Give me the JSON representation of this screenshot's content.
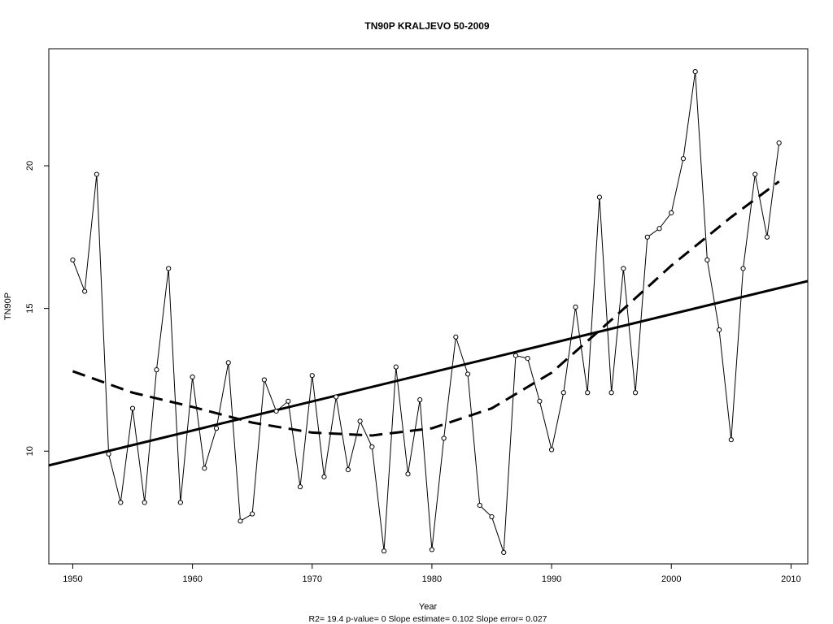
{
  "chart_data": {
    "type": "line",
    "title": "TN90P    KRALJEVO 50-2009",
    "xlabel": "Year",
    "ylabel": "TN90P",
    "stats_note": "R2= 19.4  p-value= 0  Slope estimate= 0.102  Slope error= 0.027",
    "xlim": [
      1948,
      2011.4
    ],
    "ylim": [
      6.05,
      24.1
    ],
    "x_ticks": [
      1950,
      1960,
      1970,
      1980,
      1990,
      2000,
      2010
    ],
    "y_ticks": [
      10,
      15,
      20
    ],
    "grid": false,
    "series": [
      {
        "style": "line-with-open-circles",
        "x": [
          1950,
          1951,
          1952,
          1953,
          1954,
          1955,
          1956,
          1957,
          1958,
          1959,
          1960,
          1961,
          1962,
          1963,
          1964,
          1965,
          1966,
          1967,
          1968,
          1969,
          1970,
          1971,
          1972,
          1973,
          1974,
          1975,
          1976,
          1977,
          1978,
          1979,
          1980,
          1981,
          1982,
          1983,
          1984,
          1985,
          1986,
          1987,
          1988,
          1989,
          1990,
          1991,
          1992,
          1993,
          1994,
          1995,
          1996,
          1997,
          1998,
          1999,
          2000,
          2001,
          2002,
          2003,
          2004,
          2005,
          2006,
          2007,
          2008,
          2009
        ],
        "y": [
          16.7,
          15.6,
          19.7,
          9.9,
          8.2,
          11.5,
          8.2,
          12.85,
          16.4,
          8.2,
          12.6,
          9.4,
          10.8,
          13.1,
          7.55,
          7.8,
          12.5,
          11.4,
          11.75,
          8.75,
          12.65,
          9.1,
          11.9,
          9.35,
          11.05,
          10.15,
          6.5,
          12.95,
          9.2,
          11.8,
          6.55,
          10.45,
          14.0,
          12.7,
          8.1,
          7.7,
          6.45,
          13.35,
          13.25,
          11.75,
          10.05,
          12.05,
          15.05,
          12.05,
          18.9,
          12.05,
          16.4,
          12.05,
          17.5,
          17.8,
          18.35,
          20.25,
          23.3,
          16.7,
          14.25,
          10.4,
          16.4,
          19.7,
          17.5,
          20.8
        ]
      },
      {
        "style": "solid-thick",
        "x": [
          1948,
          2011.4
        ],
        "y": [
          9.5,
          15.96
        ]
      },
      {
        "style": "dashed-thick",
        "x": [
          1950,
          1955,
          1960,
          1965,
          1970,
          1975,
          1980,
          1985,
          1990,
          1995,
          2000,
          2005,
          2009
        ],
        "y": [
          12.8,
          12.05,
          11.55,
          11.0,
          10.65,
          10.55,
          10.8,
          11.5,
          12.75,
          14.6,
          16.5,
          18.2,
          19.45
        ]
      }
    ]
  }
}
